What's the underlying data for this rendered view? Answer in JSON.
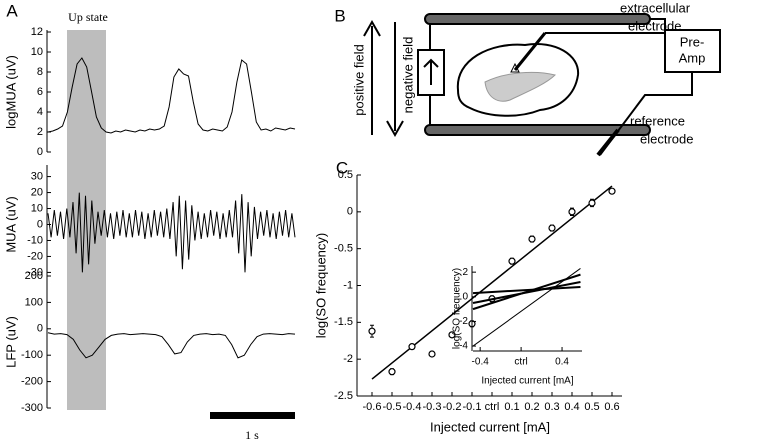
{
  "figure": {
    "panel_labels": [
      "A",
      "B",
      "C"
    ],
    "diagram": {
      "extracellular": "extracellular",
      "electrode_1": "electrode",
      "pre": "Pre-",
      "amp": "Amp",
      "reference": "reference",
      "electrode_2": "electrode",
      "positive_field": "positive field",
      "negative_field": "negative field"
    }
  },
  "chart_data": [
    {
      "type": "line",
      "ylabel": "logMUA (uV)",
      "annotation": "Up state",
      "scale_bar_label": "1 s",
      "color": "#000000",
      "ylim": [
        0,
        12
      ],
      "yticks": [
        0,
        2,
        4,
        6,
        8,
        10,
        12
      ],
      "values": [
        2.0,
        2.1,
        2.3,
        2.6,
        4,
        6.5,
        8.8,
        9.4,
        8.5,
        6,
        3.5,
        2.4,
        2.0,
        1.9,
        2.1,
        2.0,
        2.2,
        2.1,
        2.0,
        2.2,
        2.1,
        2.3,
        2.2,
        2.3,
        2.6,
        4.5,
        7.5,
        8.3,
        7.8,
        7.6,
        5,
        2.8,
        2.2,
        2.1,
        2.3,
        2.2,
        2.1,
        2.5,
        4,
        7,
        9.2,
        8.8,
        6,
        3,
        2.2,
        2.3,
        2.1,
        2.4,
        2.3,
        2.2,
        2.4,
        2.3
      ]
    },
    {
      "type": "line",
      "ylabel": "MUA (uV)",
      "color": "#000000",
      "ylim": [
        -36,
        36
      ],
      "yticks": [
        -30,
        -20,
        -10,
        0,
        10,
        20,
        30
      ],
      "values": [
        7,
        -8,
        9,
        -7,
        8,
        -9,
        10,
        -8,
        14,
        -18,
        20,
        -30,
        18,
        -25,
        15,
        -12,
        8,
        -7,
        9,
        -8,
        7,
        -9,
        8,
        -7,
        9,
        -8,
        7,
        -8,
        9,
        -7,
        8,
        -9,
        7,
        -8,
        9,
        -7,
        8,
        -8,
        10,
        -9,
        14,
        -20,
        18,
        -28,
        15,
        -22,
        12,
        -10,
        8,
        -9,
        7,
        -8,
        9,
        -7,
        8,
        -9,
        7,
        -8,
        9,
        -8,
        15,
        -18,
        19,
        -30,
        14,
        -20,
        11,
        -9,
        8,
        -7,
        9,
        -8,
        7,
        -9,
        8,
        -7,
        9,
        -8,
        7,
        -8
      ]
    },
    {
      "type": "line",
      "ylabel": "LFP (uV)",
      "color": "#000000",
      "ylim": [
        -300,
        200
      ],
      "yticks": [
        -300,
        -200,
        -100,
        0,
        100,
        200
      ],
      "values": [
        -15,
        -20,
        -18,
        -22,
        -40,
        -80,
        -110,
        -100,
        -70,
        -40,
        -25,
        -20,
        -18,
        -22,
        -20,
        -18,
        -20,
        -22,
        -30,
        -60,
        -95,
        -90,
        -50,
        -25,
        -20,
        -18,
        -22,
        -20,
        -25,
        -60,
        -110,
        -100,
        -60,
        -30,
        -20,
        -18,
        -20,
        -22,
        -18,
        -20
      ]
    },
    {
      "type": "scatter",
      "xlabel": "Injected current [mA]",
      "ylabel": "log(SO frequency)",
      "color": "#000000",
      "xlim": [
        -0.67,
        0.65
      ],
      "ylim": [
        -2.5,
        0.5
      ],
      "xticks": [
        -0.6,
        -0.5,
        -0.4,
        -0.3,
        -0.2,
        -0.1,
        {
          "value": 0,
          "label": "ctrl"
        },
        0.1,
        0.2,
        0.3,
        0.4,
        0.5,
        0.6
      ],
      "yticks": [
        -2.5,
        -2,
        -1.5,
        -1,
        -0.5,
        0,
        0.5
      ],
      "x": [
        -0.6,
        -0.5,
        -0.4,
        -0.3,
        -0.2,
        -0.1,
        0,
        0.1,
        0.2,
        0.3,
        0.4,
        0.5,
        0.6
      ],
      "values": [
        -1.62,
        -2.17,
        -1.83,
        -1.93,
        -1.67,
        -1.52,
        -1.18,
        -0.67,
        -0.37,
        -0.22,
        0.0,
        0.12,
        0.28
      ],
      "errors": [
        0.08,
        0.04,
        0.03,
        0.03,
        0.03,
        0.04,
        0.04,
        0.04,
        0.04,
        0.04,
        0.05,
        0.05,
        0.03
      ],
      "fit": {
        "x": [
          -0.6,
          0.6
        ],
        "values": [
          -2.27,
          0.35
        ]
      }
    },
    {
      "type": "line",
      "xlabel": "Injected current [mA]",
      "ylabel": "log(SO frequency)",
      "color": "#000000",
      "xlim": [
        -0.47,
        0.595
      ],
      "ylim": [
        -4.4,
        2.5
      ],
      "xticks": [
        -0.4,
        {
          "value": 0,
          "label": "ctrl"
        },
        0.4
      ],
      "yticks": [
        -4,
        -2,
        0,
        2
      ],
      "lines": [
        {
          "x": [
            -0.47,
            0.58
          ],
          "values": [
            -4.0,
            2.3
          ]
        },
        {
          "x": [
            -0.47,
            0.58
          ],
          "values": [
            -1.0,
            1.8
          ]
        },
        {
          "x": [
            -0.47,
            0.58
          ],
          "values": [
            -0.5,
            1.2
          ]
        },
        {
          "x": [
            -0.47,
            0.58
          ],
          "values": [
            0.3,
            0.8
          ]
        }
      ]
    }
  ]
}
